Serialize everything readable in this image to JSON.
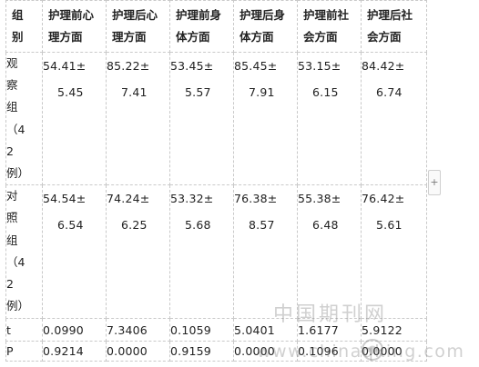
{
  "table": {
    "headers": [
      {
        "line1": "组",
        "line2": "别"
      },
      {
        "line1": "护理前心",
        "line2": "理方面"
      },
      {
        "line1": "护理后心",
        "line2": "理方面"
      },
      {
        "line1": "护理前身",
        "line2": "体方面"
      },
      {
        "line1": "护理后身",
        "line2": "体方面"
      },
      {
        "line1": "护理前社",
        "line2": "会方面"
      },
      {
        "line1": "护理后社",
        "line2": "会方面"
      }
    ],
    "rows": {
      "observation": {
        "group_lines": [
          "观",
          "察",
          "组",
          "（4",
          "2",
          "例）"
        ],
        "values": [
          {
            "mean": "54.41±",
            "sd": "5.45"
          },
          {
            "mean": "85.22±",
            "sd": "7.41"
          },
          {
            "mean": "53.45±",
            "sd": "5.57"
          },
          {
            "mean": "85.45±",
            "sd": "7.91"
          },
          {
            "mean": "53.15±",
            "sd": "6.15"
          },
          {
            "mean": "84.42±",
            "sd": "6.74"
          }
        ]
      },
      "control": {
        "group_lines": [
          "对",
          "照",
          "组",
          "（4",
          "2",
          "例）"
        ],
        "values": [
          {
            "mean": "54.54±",
            "sd": "6.54"
          },
          {
            "mean": "74.24±",
            "sd": "6.25"
          },
          {
            "mean": "53.32±",
            "sd": "5.68"
          },
          {
            "mean": "76.38±",
            "sd": "8.57"
          },
          {
            "mean": "55.38±",
            "sd": "6.48"
          },
          {
            "mean": "76.42±",
            "sd": "5.61"
          }
        ]
      },
      "t": {
        "label": "t",
        "values": [
          "0.0990",
          "7.3406",
          "0.1059",
          "5.0401",
          "1.6177",
          "5.9122"
        ]
      },
      "p": {
        "label": "P",
        "values": [
          "0.9214",
          "0.0000",
          "0.9159",
          "0.0000",
          "0.1096",
          "0.0000"
        ]
      }
    }
  },
  "expand_handle": {
    "symbol": "+",
    "icon": "plus-icon"
  },
  "watermark": {
    "text_cn": "中国期刊网",
    "text_url": "www.chinaqking.com",
    "logo_icon": "cnki-logo-icon"
  }
}
